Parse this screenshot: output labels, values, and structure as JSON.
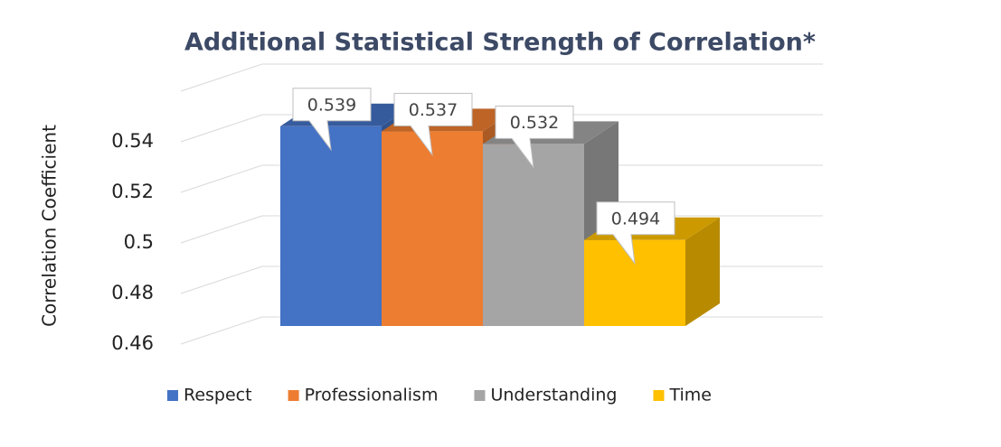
{
  "chart_data": {
    "type": "bar3d",
    "title": "Additional Statistical Strength of Correlation*",
    "y_label": "Correlation Coefficient",
    "categories": [
      null
    ],
    "series": [
      {
        "name": "Respect",
        "color": "#4472c4",
        "values": [
          0.539
        ]
      },
      {
        "name": "Professionalism",
        "color": "#ed7d31",
        "values": [
          0.537
        ]
      },
      {
        "name": "Understanding",
        "color": "#a5a5a5",
        "values": [
          0.532
        ]
      },
      {
        "name": "Time",
        "color": "#ffc000",
        "values": [
          0.494
        ]
      }
    ],
    "ylim": [
      0.46,
      0.56
    ],
    "yticks": [
      0.46,
      0.48,
      0.5,
      0.52,
      0.54
    ],
    "grid": true,
    "legend": "bottom"
  }
}
